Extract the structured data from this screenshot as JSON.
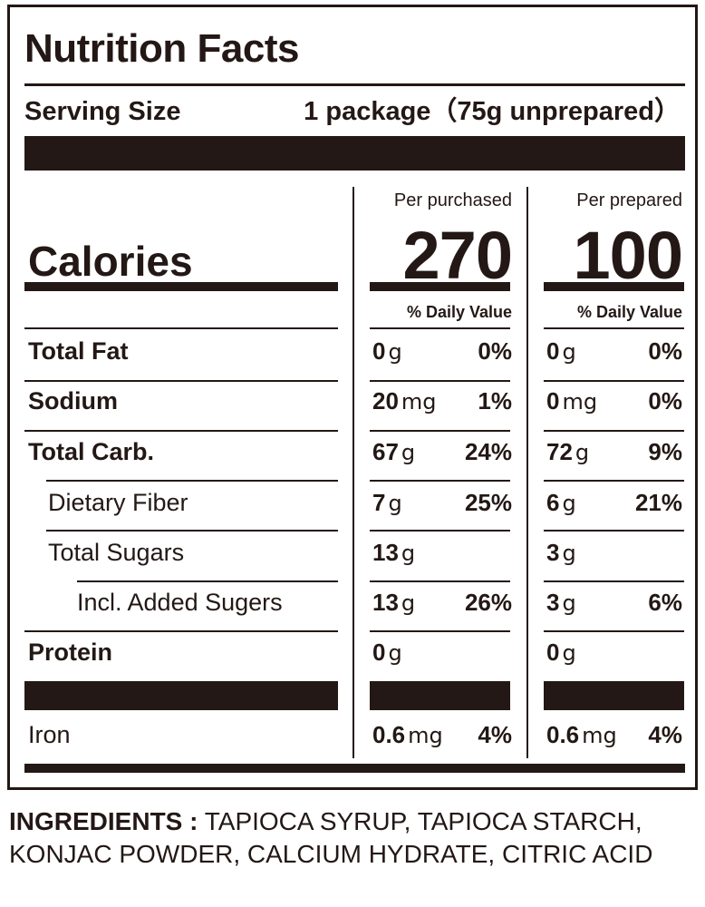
{
  "title": "Nutrition Facts",
  "serving": {
    "label": "Serving Size",
    "value": "1 package（75g unprepared）"
  },
  "columns": [
    {
      "header": "Per purchased",
      "calories": "270",
      "dv_header": "% Daily Value"
    },
    {
      "header": "Per prepared",
      "calories": "100",
      "dv_header": "% Daily Value"
    }
  ],
  "calories_label": "Calories",
  "nutrients": [
    {
      "name": "Total Fat",
      "bold": true,
      "indent": 0,
      "purchased": {
        "amount": "0",
        "unit": "g",
        "dv": "0%"
      },
      "prepared": {
        "amount": "0",
        "unit": "g",
        "dv": "0%"
      }
    },
    {
      "name": "Sodium",
      "bold": true,
      "indent": 0,
      "purchased": {
        "amount": "20",
        "unit": "mg",
        "dv": "1%"
      },
      "prepared": {
        "amount": "0",
        "unit": "mg",
        "dv": "0%"
      }
    },
    {
      "name": "Total Carb.",
      "bold": true,
      "indent": 0,
      "purchased": {
        "amount": "67",
        "unit": "g",
        "dv": "24%"
      },
      "prepared": {
        "amount": "72",
        "unit": "g",
        "dv": "9%"
      }
    },
    {
      "name": "Dietary Fiber",
      "bold": false,
      "indent": 1,
      "purchased": {
        "amount": "7",
        "unit": "g",
        "dv": "25%"
      },
      "prepared": {
        "amount": "6",
        "unit": "g",
        "dv": "21%"
      }
    },
    {
      "name": "Total Sugars",
      "bold": false,
      "indent": 1,
      "purchased": {
        "amount": "13",
        "unit": "g",
        "dv": ""
      },
      "prepared": {
        "amount": "3",
        "unit": "g",
        "dv": ""
      }
    },
    {
      "name": "Incl. Added Sugers",
      "bold": false,
      "indent": 2,
      "purchased": {
        "amount": "13",
        "unit": "g",
        "dv": "26%"
      },
      "prepared": {
        "amount": "3",
        "unit": "g",
        "dv": "6%"
      }
    },
    {
      "name": "Protein",
      "bold": true,
      "indent": 0,
      "purchased": {
        "amount": "0",
        "unit": "g",
        "dv": ""
      },
      "prepared": {
        "amount": "0",
        "unit": "g",
        "dv": ""
      }
    }
  ],
  "minerals": [
    {
      "name": "Iron",
      "bold": false,
      "indent": 0,
      "purchased": {
        "amount": "0.6",
        "unit": "mg",
        "dv": "4%"
      },
      "prepared": {
        "amount": "0.6",
        "unit": "mg",
        "dv": "4%"
      }
    }
  ],
  "ingredients": {
    "label": "INGREDIENTS :",
    "text": "TAPIOCA SYRUP, TAPIOCA STARCH, KONJAC POWDER, CALCIUM HYDRATE, CITRIC ACID"
  },
  "colors": {
    "ink": "#231815",
    "background": "#ffffff"
  }
}
